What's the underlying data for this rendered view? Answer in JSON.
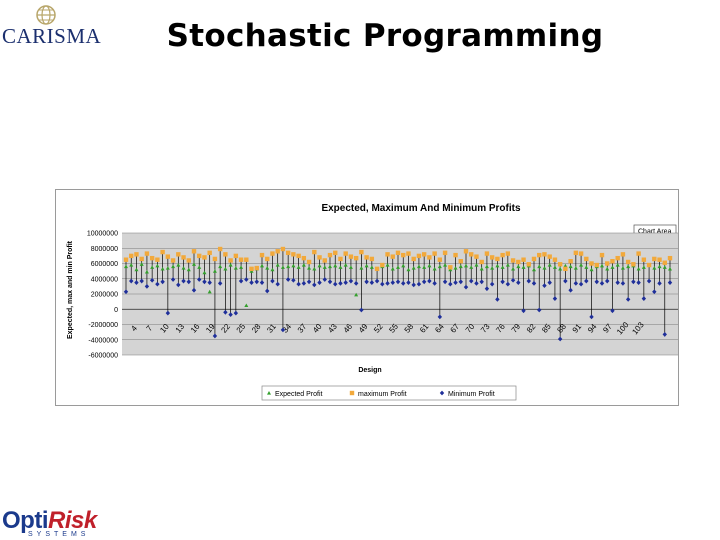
{
  "slide": {
    "title": "Stochastic Programming",
    "logo_top": "CARISMA",
    "logo_bottom_a": "Opti",
    "logo_bottom_b": "Risk",
    "logo_bottom_sub": "SYSTEMS"
  },
  "chart_data": {
    "type": "scatter",
    "title": "Expected, Maximum And Minimum Profits",
    "xlabel": "Design",
    "ylabel": "Expected, max and min Profit",
    "chart_area_label": "Chart Area",
    "y_tick_labels": [
      "10000000",
      "8000000",
      "6000000",
      "4000000",
      "2000000",
      "0",
      "-2000000",
      "-4000000",
      "-6000000"
    ],
    "ylim": [
      -6000000,
      10000000
    ],
    "grid": true,
    "legend_position": "bottom",
    "colors": {
      "expected": "#33a02c",
      "maximum": "#f2a93b",
      "minimum": "#1f2f9a",
      "plot_bg": "#d4d4d4",
      "vline": "#000000"
    },
    "x_labels": [
      "4",
      "7",
      "10",
      "13",
      "16",
      "19",
      "22",
      "25",
      "28",
      "31",
      "34",
      "37",
      "40",
      "43",
      "46",
      "49",
      "52",
      "55",
      "58",
      "61",
      "64",
      "67",
      "70",
      "73",
      "76",
      "79",
      "82",
      "85",
      "88",
      "91",
      "94",
      "97",
      "100",
      "103"
    ],
    "series": [
      {
        "name": "Expected Profit",
        "marker": "triangle",
        "values": [
          5600000,
          5800000,
          5200000,
          5900000,
          4900000,
          5500000,
          5700000,
          5300000,
          5400000,
          5600000,
          5800000,
          5400000,
          5200000,
          5900000,
          5500000,
          4800000,
          2300000,
          5000000,
          5600000,
          5300000,
          5800000,
          5400000,
          5500000,
          500000,
          5000000,
          5300000,
          5700000,
          5400000,
          5200000,
          5800000,
          5500000,
          5600000,
          5700000,
          5500000,
          5800000,
          5400000,
          5300000,
          5700000,
          5500000,
          5600000,
          5700000,
          5500000,
          5800000,
          5500000,
          1900000,
          5400000,
          5700000,
          5500000,
          5300000,
          5600000,
          5800000,
          5300000,
          5500000,
          5700000,
          5200000,
          5400000,
          5600000,
          5500000,
          5700000,
          5300000,
          5600000,
          5800000,
          5200000,
          5400000,
          5600000,
          5700000,
          5500000,
          5800000,
          5300000,
          5600000,
          5400000,
          5700000,
          5500000,
          5800000,
          5300000,
          5600000,
          5500000,
          5700000,
          5200000,
          5600000,
          5400000,
          5800000,
          5500000,
          5300000,
          5700000,
          5600000,
          5400000,
          5800000,
          5500000,
          5200000,
          5600000,
          5700000,
          5300000,
          5500000,
          5800000,
          5400000,
          5600000,
          5700000,
          5300000,
          5500000,
          5800000,
          5400000,
          5600000,
          5500000,
          5300000
        ]
      },
      {
        "name": "maximum Profit",
        "marker": "square",
        "values": [
          6500000,
          7000000,
          7200000,
          6600000,
          7300000,
          6700000,
          6500000,
          7500000,
          6900000,
          6400000,
          7200000,
          6800000,
          6400000,
          7600000,
          7000000,
          6800000,
          7400000,
          6600000,
          7900000,
          7200000,
          6400000,
          7000000,
          6500000,
          6500000,
          5300000,
          5400000,
          7100000,
          6600000,
          7300000,
          7600000,
          7900000,
          7400000,
          7200000,
          7000000,
          6700000,
          6200000,
          7500000,
          6800000,
          6400000,
          7100000,
          7400000,
          6600000,
          7300000,
          6900000,
          6700000,
          7500000,
          6800000,
          6600000,
          5300000,
          5800000,
          7200000,
          6900000,
          7400000,
          7100000,
          7300000,
          6600000,
          7000000,
          7200000,
          6800000,
          7300000,
          6500000,
          7400000,
          5500000,
          7100000,
          6300000,
          7600000,
          7200000,
          6900000,
          6200000,
          7300000,
          6800000,
          6600000,
          7100000,
          7300000,
          6400000,
          6200000,
          6500000,
          5900000,
          6600000,
          7100000,
          7200000,
          6900000,
          6500000,
          5900000,
          5300000,
          6300000,
          7400000,
          7300000,
          6600000,
          6000000,
          5800000,
          7100000,
          6000000,
          6300000,
          6700000,
          7200000,
          6200000,
          5900000,
          7300000,
          6500000,
          5800000,
          6600000,
          6500000,
          6100000,
          6700000
        ]
      },
      {
        "name": "Minimum Profit",
        "marker": "diamond",
        "values": [
          2300000,
          3700000,
          3500000,
          3700000,
          3000000,
          3800000,
          3300000,
          3600000,
          -500000,
          3900000,
          3200000,
          3700000,
          3600000,
          2500000,
          3900000,
          3600000,
          3500000,
          -3500000,
          3400000,
          -400000,
          -700000,
          -500000,
          3700000,
          3900000,
          3500000,
          3600000,
          3500000,
          2400000,
          3700000,
          3300000,
          -2700000,
          3900000,
          3800000,
          3300000,
          3400000,
          3600000,
          3200000,
          3500000,
          3900000,
          3600000,
          3300000,
          3400000,
          3500000,
          3700000,
          3400000,
          -100000,
          3600000,
          3500000,
          3700000,
          3300000,
          3400000,
          3500000,
          3600000,
          3400000,
          3500000,
          3200000,
          3300000,
          3600000,
          3700000,
          3400000,
          -1000000,
          3600000,
          3300000,
          3500000,
          3600000,
          2900000,
          3700000,
          3400000,
          3600000,
          2700000,
          3300000,
          1300000,
          3600000,
          3300000,
          3800000,
          3500000,
          -200000,
          3700000,
          3400000,
          -100000,
          3100000,
          3500000,
          1400000,
          -3900000,
          3700000,
          2500000,
          3400000,
          3300000,
          3700000,
          -1000000,
          3600000,
          3400000,
          3700000,
          -200000,
          3500000,
          3400000,
          1300000,
          3600000,
          3500000,
          1400000,
          3700000,
          2300000,
          3400000,
          -3300000,
          3500000
        ]
      }
    ]
  }
}
